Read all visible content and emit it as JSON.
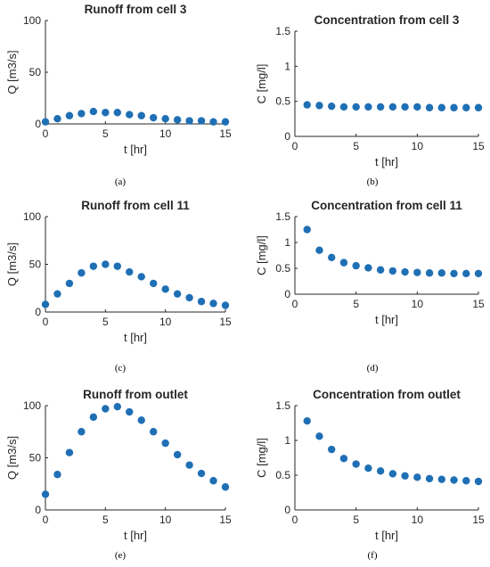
{
  "figure": {
    "marker_color": "#1f6fb5",
    "captions": [
      "(a)",
      "(b)",
      "(c)",
      "(d)",
      "(e)",
      "(f)"
    ]
  },
  "chart_data": [
    {
      "type": "scatter",
      "title": "Runoff from cell 3",
      "xlabel": "t [hr]",
      "ylabel": "Q [m3/s]",
      "xlim": [
        0,
        15
      ],
      "ylim": [
        0,
        100
      ],
      "xticks": [
        0,
        5,
        10,
        15
      ],
      "yticks": [
        0,
        50,
        100
      ],
      "x": [
        0,
        1,
        2,
        3,
        4,
        5,
        6,
        7,
        8,
        9,
        10,
        11,
        12,
        13,
        14,
        15
      ],
      "y": [
        2,
        5,
        8,
        10,
        12,
        11,
        11,
        9,
        8,
        6,
        5,
        4,
        3,
        3,
        2,
        2
      ]
    },
    {
      "type": "scatter",
      "title": "Concentration from cell 3",
      "xlabel": "t [hr]",
      "ylabel": "C [mg/l]",
      "xlim": [
        0,
        15
      ],
      "ylim": [
        0,
        1.5
      ],
      "xticks": [
        0,
        5,
        10,
        15
      ],
      "yticks": [
        0,
        0.5,
        1,
        1.5
      ],
      "x": [
        1,
        2,
        3,
        4,
        5,
        6,
        7,
        8,
        9,
        10,
        11,
        12,
        13,
        14,
        15
      ],
      "y": [
        0.45,
        0.44,
        0.43,
        0.42,
        0.42,
        0.42,
        0.42,
        0.42,
        0.42,
        0.42,
        0.41,
        0.41,
        0.41,
        0.41,
        0.41
      ]
    },
    {
      "type": "scatter",
      "title": "Runoff from cell 11",
      "xlabel": "t [hr]",
      "ylabel": "Q [m3/s]",
      "xlim": [
        0,
        15
      ],
      "ylim": [
        0,
        100
      ],
      "xticks": [
        0,
        5,
        10,
        15
      ],
      "yticks": [
        0,
        50,
        100
      ],
      "x": [
        0,
        1,
        2,
        3,
        4,
        5,
        6,
        7,
        8,
        9,
        10,
        11,
        12,
        13,
        14,
        15
      ],
      "y": [
        8,
        19,
        30,
        41,
        48,
        50,
        48,
        42,
        37,
        30,
        24,
        19,
        15,
        11,
        9,
        7
      ]
    },
    {
      "type": "scatter",
      "title": "Concentration from cell 11",
      "xlabel": "t [hr]",
      "ylabel": "C [mg/l]",
      "xlim": [
        0,
        15
      ],
      "ylim": [
        0,
        1.5
      ],
      "xticks": [
        0,
        5,
        10,
        15
      ],
      "yticks": [
        0,
        0.5,
        1,
        1.5
      ],
      "x": [
        1,
        2,
        3,
        4,
        5,
        6,
        7,
        8,
        9,
        10,
        11,
        12,
        13,
        14,
        15
      ],
      "y": [
        1.25,
        0.85,
        0.71,
        0.61,
        0.55,
        0.51,
        0.47,
        0.45,
        0.43,
        0.42,
        0.41,
        0.41,
        0.4,
        0.4,
        0.4
      ]
    },
    {
      "type": "scatter",
      "title": "Runoff from outlet",
      "xlabel": "t [hr]",
      "ylabel": "Q [m3/s]",
      "xlim": [
        0,
        15
      ],
      "ylim": [
        0,
        100
      ],
      "xticks": [
        0,
        5,
        10,
        15
      ],
      "yticks": [
        0,
        50,
        100
      ],
      "x": [
        0,
        1,
        2,
        3,
        4,
        5,
        6,
        7,
        8,
        9,
        10,
        11,
        12,
        13,
        14,
        15
      ],
      "y": [
        15,
        34,
        55,
        75,
        89,
        97,
        99,
        94,
        86,
        75,
        64,
        53,
        43,
        35,
        28,
        22
      ]
    },
    {
      "type": "scatter",
      "title": "Concentration from outlet",
      "xlabel": "t [hr]",
      "ylabel": "C [mg/l]",
      "xlim": [
        0,
        15
      ],
      "ylim": [
        0,
        1.5
      ],
      "xticks": [
        0,
        5,
        10,
        15
      ],
      "yticks": [
        0,
        0.5,
        1,
        1.5
      ],
      "x": [
        1,
        2,
        3,
        4,
        5,
        6,
        7,
        8,
        9,
        10,
        11,
        12,
        13,
        14,
        15
      ],
      "y": [
        1.28,
        1.06,
        0.87,
        0.74,
        0.66,
        0.6,
        0.56,
        0.52,
        0.49,
        0.47,
        0.45,
        0.44,
        0.43,
        0.42,
        0.41
      ]
    }
  ]
}
